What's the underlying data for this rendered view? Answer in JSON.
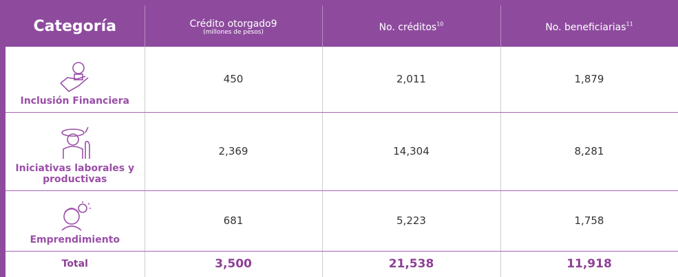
{
  "table": {
    "header": {
      "category": "Categoría",
      "credit": "Crédito otorgado9",
      "credit_unit": "(millones de pesos)",
      "count": "No. créditos",
      "count_note": "10",
      "beneficiaries": "No. beneficiarias",
      "beneficiaries_note": "11"
    },
    "rows": [
      {
        "label": "Inclusión Financiera",
        "values": [
          "450",
          "2,011",
          "1,879"
        ]
      },
      {
        "label": "Iniciativas laborales y productivas",
        "values": [
          "2,369",
          "14,304",
          "8,281"
        ]
      },
      {
        "label": "Emprendimiento",
        "values": [
          "681",
          "5,223",
          "1,758"
        ]
      }
    ],
    "total": {
      "label": "Total",
      "values": [
        "3,500",
        "21,538",
        "11,918"
      ]
    }
  }
}
